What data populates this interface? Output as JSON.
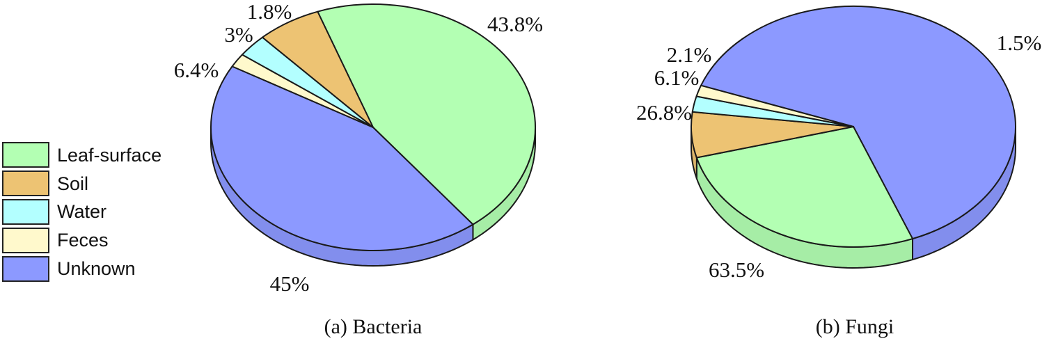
{
  "legend": {
    "items": [
      {
        "label": "Leaf-surface",
        "color": "#b3ffb3"
      },
      {
        "label": "Soil",
        "color": "#edc373"
      },
      {
        "label": "Water",
        "color": "#b3ffff"
      },
      {
        "label": "Feces",
        "color": "#fff9cc"
      },
      {
        "label": "Unknown",
        "color": "#8c99ff"
      }
    ]
  },
  "chart_data": [
    {
      "type": "pie",
      "title": "(a) Bacteria",
      "categories": [
        "Leaf-surface",
        "Soil",
        "Water",
        "Feces",
        "Unknown"
      ],
      "values": [
        45,
        6.4,
        3,
        1.8,
        43.8
      ],
      "data_labels": [
        "45%",
        "6.4%",
        "3%",
        "1.8%",
        "43.8%"
      ],
      "legend": "left"
    },
    {
      "type": "pie",
      "title": "(b) Fungi",
      "categories": [
        "Leaf-surface",
        "Soil",
        "Water",
        "Feces",
        "Unknown"
      ],
      "values": [
        26.8,
        6.1,
        2.1,
        1.5,
        63.5
      ],
      "data_labels": [
        "26.8%",
        "6.1%",
        "2.1%",
        "1.5%",
        "63.5%"
      ],
      "legend": "left"
    }
  ]
}
